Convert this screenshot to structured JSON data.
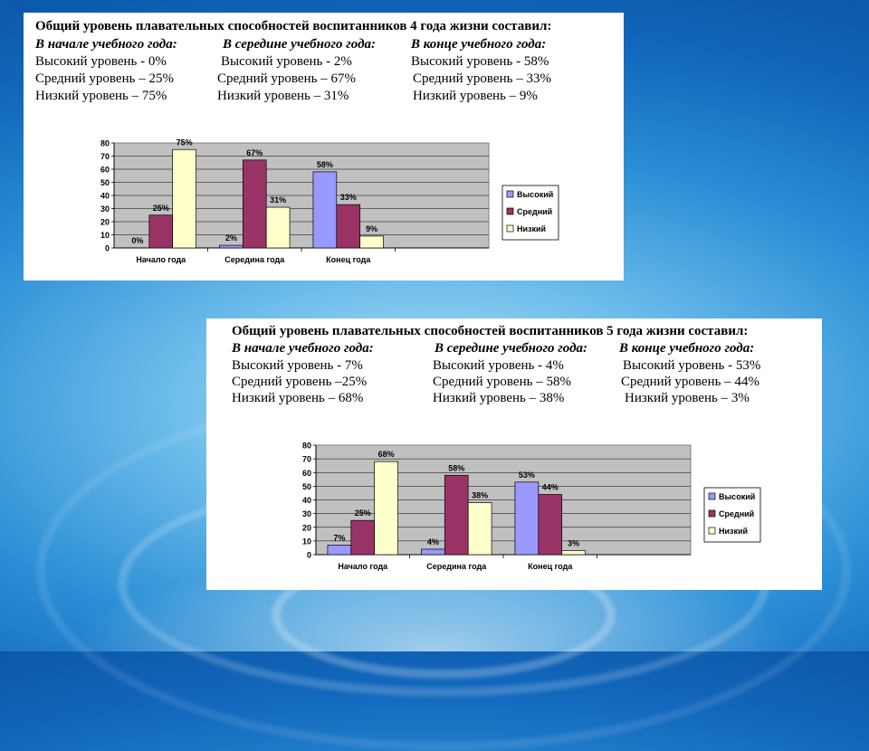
{
  "colors": {
    "high": "#9999ff",
    "medium": "#993366",
    "low": "#ffffcc",
    "plot_bg": "#c0c0c0"
  },
  "legend": [
    "Высокий",
    "Средний",
    "Низкий"
  ],
  "panels": [
    {
      "title": "Общий уровень плавательных способностей   воспитанников 4 года жизни составил:",
      "columns": [
        {
          "heading": "В начале учебного года:",
          "lines": [
            "Высокий уровень - 0%",
            "Средний уровень – 25%",
            "Низкий уровень – 75%"
          ]
        },
        {
          "heading": "В середине учебного года:",
          "lines": [
            "Высокий уровень - 2%",
            "Средний уровень – 67%",
            "Низкий уровень – 31%"
          ]
        },
        {
          "heading": "В конце учебного года:",
          "lines": [
            "Высокий уровень -  58%",
            "Средний уровень – 33%",
            "Низкий уровень – 9%"
          ]
        }
      ]
    },
    {
      "title": "Общий уровень плавательных способностей   воспитанников 5 года жизни составил:",
      "columns": [
        {
          "heading": "В начале учебного года:",
          "lines": [
            "Высокий уровень - 7%",
            "Средний уровень –25%",
            "Низкий уровень – 68%"
          ]
        },
        {
          "heading": "В середине учебного года:",
          "lines": [
            "Высокий уровень - 4%",
            "Средний уровень – 58%",
            "Низкий уровень – 38%"
          ]
        },
        {
          "heading": "В конце учебного года:",
          "lines": [
            "Высокий уровень - 53%",
            "Средний уровень – 44%",
            "Низкий уровень – 3%"
          ]
        }
      ]
    }
  ],
  "chart_data": [
    {
      "type": "bar",
      "categories": [
        "Начало года",
        "Середина года",
        "Конец года"
      ],
      "series": [
        {
          "name": "Высокий",
          "values": [
            0,
            2,
            58
          ],
          "labels": [
            "0%",
            "2%",
            "58%"
          ]
        },
        {
          "name": "Средний",
          "values": [
            25,
            67,
            33
          ],
          "labels": [
            "25%",
            "67%",
            "33%"
          ]
        },
        {
          "name": "Низкий",
          "values": [
            75,
            31,
            9
          ],
          "labels": [
            "75%",
            "31%",
            "9%"
          ]
        }
      ],
      "ylim": [
        0,
        80
      ],
      "yticks": [
        0,
        10,
        20,
        30,
        40,
        50,
        60,
        70,
        80
      ],
      "grid": true,
      "legend": "right"
    },
    {
      "type": "bar",
      "categories": [
        "Начало года",
        "Середина года",
        "Конец года"
      ],
      "series": [
        {
          "name": "Высокий",
          "values": [
            7,
            4,
            53
          ],
          "labels": [
            "7%",
            "4%",
            "53%"
          ]
        },
        {
          "name": "Средний",
          "values": [
            25,
            58,
            44
          ],
          "labels": [
            "25%",
            "58%",
            "44%"
          ]
        },
        {
          "name": "Низкий",
          "values": [
            68,
            38,
            3
          ],
          "labels": [
            "68%",
            "38%",
            "3%"
          ]
        }
      ],
      "ylim": [
        0,
        80
      ],
      "yticks": [
        0,
        10,
        20,
        30,
        40,
        50,
        60,
        70,
        80
      ],
      "grid": true,
      "legend": "right"
    }
  ]
}
